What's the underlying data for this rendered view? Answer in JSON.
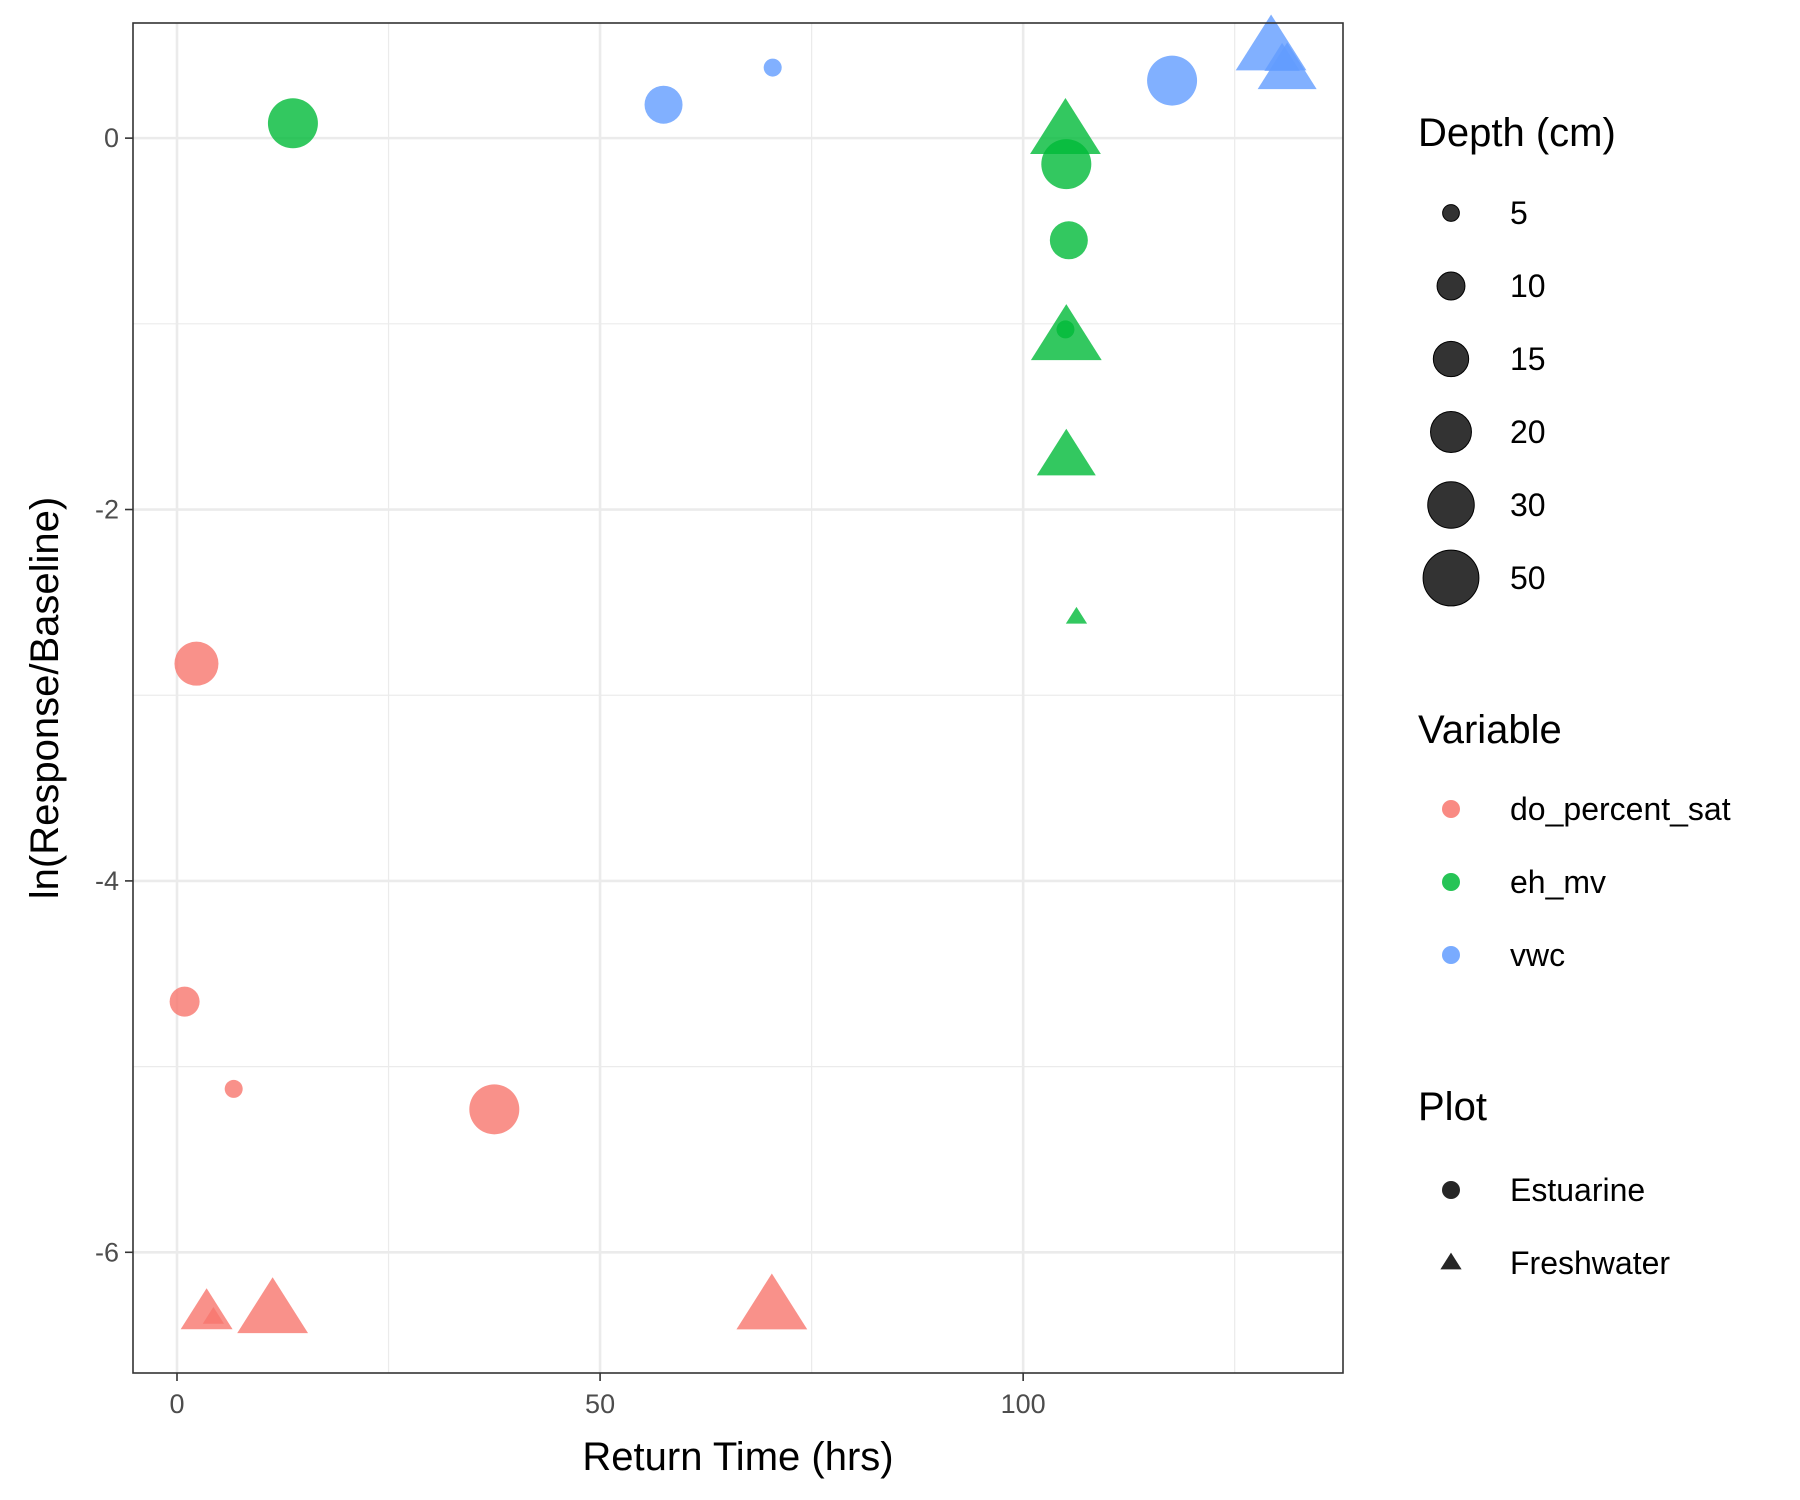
{
  "chart_data": {
    "type": "scatter",
    "xlabel": "Return Time (hrs)",
    "ylabel": "ln(Response/Baseline)",
    "xlim": [
      -5.2,
      137.8
    ],
    "ylim": [
      -6.65,
      0.62
    ],
    "x_ticks": [
      {
        "value": 0,
        "label": "0"
      },
      {
        "value": 50,
        "label": "50"
      },
      {
        "value": 100,
        "label": "100"
      }
    ],
    "y_ticks": [
      {
        "value": 0,
        "label": "0"
      },
      {
        "value": -2,
        "label": "-2"
      },
      {
        "value": -4,
        "label": "-4"
      },
      {
        "value": -6,
        "label": "-6"
      }
    ],
    "grid": true,
    "legend_position": "right",
    "legends": {
      "size": {
        "title": "Depth (cm)",
        "entries": [
          {
            "label": "5",
            "depth": 5
          },
          {
            "label": "10",
            "depth": 10
          },
          {
            "label": "15",
            "depth": 15
          },
          {
            "label": "20",
            "depth": 20
          },
          {
            "label": "30",
            "depth": 30
          },
          {
            "label": "50",
            "depth": 50
          }
        ]
      },
      "color": {
        "title": "Variable",
        "entries": [
          {
            "label": "do_percent_sat",
            "color": "#F8766D"
          },
          {
            "label": "eh_mv",
            "color": "#00BA38"
          },
          {
            "label": "vwc",
            "color": "#619CFF"
          }
        ]
      },
      "shape": {
        "title": "Plot",
        "entries": [
          {
            "label": "Estuarine",
            "shape": "circle"
          },
          {
            "label": "Freshwater",
            "shape": "triangle"
          }
        ]
      }
    },
    "points": [
      {
        "x": 13.7,
        "y": 0.08,
        "variable": "eh_mv",
        "plot": "Estuarine",
        "depth": 30
      },
      {
        "x": 57.5,
        "y": 0.18,
        "variable": "vwc",
        "plot": "Estuarine",
        "depth": 15
      },
      {
        "x": 70.4,
        "y": 0.38,
        "variable": "vwc",
        "plot": "Estuarine",
        "depth": 5
      },
      {
        "x": 117.6,
        "y": 0.31,
        "variable": "vwc",
        "plot": "Estuarine",
        "depth": 30
      },
      {
        "x": 129.3,
        "y": 0.48,
        "variable": "vwc",
        "plot": "Freshwater",
        "depth": 50
      },
      {
        "x": 130.6,
        "y": 0.42,
        "variable": "vwc",
        "plot": "Freshwater",
        "depth": 10
      },
      {
        "x": 131.2,
        "y": 0.36,
        "variable": "vwc",
        "plot": "Freshwater",
        "depth": 30
      },
      {
        "x": 105.0,
        "y": 0.03,
        "variable": "eh_mv",
        "plot": "Freshwater",
        "depth": 50
      },
      {
        "x": 105.1,
        "y": -0.14,
        "variable": "eh_mv",
        "plot": "Estuarine",
        "depth": 30
      },
      {
        "x": 105.4,
        "y": -0.55,
        "variable": "eh_mv",
        "plot": "Estuarine",
        "depth": 15
      },
      {
        "x": 105.0,
        "y": -1.03,
        "variable": "eh_mv",
        "plot": "Estuarine",
        "depth": 5
      },
      {
        "x": 105.1,
        "y": -1.08,
        "variable": "eh_mv",
        "plot": "Freshwater",
        "depth": 50
      },
      {
        "x": 105.1,
        "y": -1.72,
        "variable": "eh_mv",
        "plot": "Freshwater",
        "depth": 30
      },
      {
        "x": 106.3,
        "y": -2.58,
        "variable": "eh_mv",
        "plot": "Freshwater",
        "depth": 5
      },
      {
        "x": 2.3,
        "y": -2.83,
        "variable": "do_percent_sat",
        "plot": "Estuarine",
        "depth": 20
      },
      {
        "x": 0.9,
        "y": -4.65,
        "variable": "do_percent_sat",
        "plot": "Estuarine",
        "depth": 10
      },
      {
        "x": 6.7,
        "y": -5.12,
        "variable": "do_percent_sat",
        "plot": "Estuarine",
        "depth": 5
      },
      {
        "x": 37.5,
        "y": -5.23,
        "variable": "do_percent_sat",
        "plot": "Estuarine",
        "depth": 30
      },
      {
        "x": 3.5,
        "y": -6.33,
        "variable": "do_percent_sat",
        "plot": "Freshwater",
        "depth": 20
      },
      {
        "x": 4.3,
        "y": -6.35,
        "variable": "do_percent_sat",
        "plot": "Freshwater",
        "depth": 5
      },
      {
        "x": 11.3,
        "y": -6.32,
        "variable": "do_percent_sat",
        "plot": "Freshwater",
        "depth": 50
      },
      {
        "x": 70.3,
        "y": -6.3,
        "variable": "do_percent_sat",
        "plot": "Freshwater",
        "depth": 50
      }
    ]
  }
}
